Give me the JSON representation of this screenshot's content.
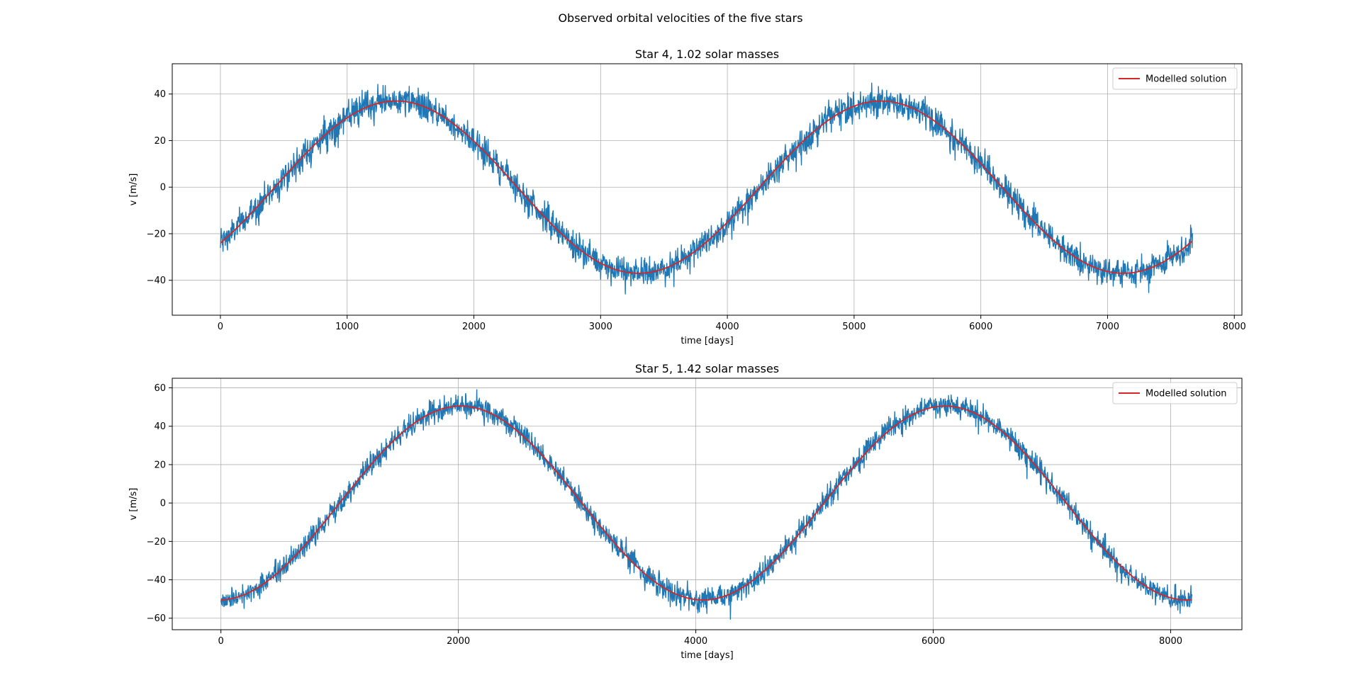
{
  "figure_title": "Observed orbital velocities of the five stars",
  "colors": {
    "observed": "#1f77b4",
    "model": "#d62728",
    "grid": "#b0b0b0",
    "axes": "#000000"
  },
  "chart_data": [
    {
      "type": "line",
      "title": "Star 4, 1.02 solar masses",
      "xlabel": "time [days]",
      "ylabel": "v [m/s]",
      "xlim": [
        -380,
        8060
      ],
      "ylim": [
        -55,
        53
      ],
      "xticks": [
        0,
        1000,
        2000,
        3000,
        4000,
        5000,
        6000,
        7000,
        8000
      ],
      "yticks": [
        -40,
        -20,
        0,
        20,
        40
      ],
      "grid": true,
      "legend": {
        "position": "top-right",
        "entries": [
          "Modelled solution"
        ]
      },
      "x_range": [
        0,
        7670
      ],
      "series": [
        {
          "kind": "noisy",
          "amplitude": 37,
          "period": 3825,
          "phase_zero_crossing": 430,
          "noise": 3.2
        },
        {
          "name": "Modelled solution",
          "kind": "model",
          "amplitude": 37,
          "period": 3825,
          "phase_zero_crossing": 430
        }
      ]
    },
    {
      "type": "line",
      "title": "Star 5, 1.42 solar masses",
      "xlabel": "time [days]",
      "ylabel": "v [m/s]",
      "xlim": [
        -410,
        8600
      ],
      "ylim": [
        -66,
        65
      ],
      "xticks": [
        0,
        2000,
        4000,
        6000,
        8000
      ],
      "yticks": [
        -60,
        -40,
        -20,
        0,
        20,
        40,
        60
      ],
      "grid": true,
      "legend": {
        "position": "top-right",
        "entries": [
          "Modelled solution"
        ]
      },
      "x_range": [
        0,
        8180
      ],
      "series": [
        {
          "kind": "noisy",
          "amplitude": 50.5,
          "period": 4080,
          "phase_zero_crossing": 1000,
          "noise": 3.0
        },
        {
          "name": "Modelled solution",
          "kind": "model",
          "amplitude": 50.5,
          "period": 4080,
          "phase_zero_crossing": 1000
        }
      ]
    }
  ]
}
